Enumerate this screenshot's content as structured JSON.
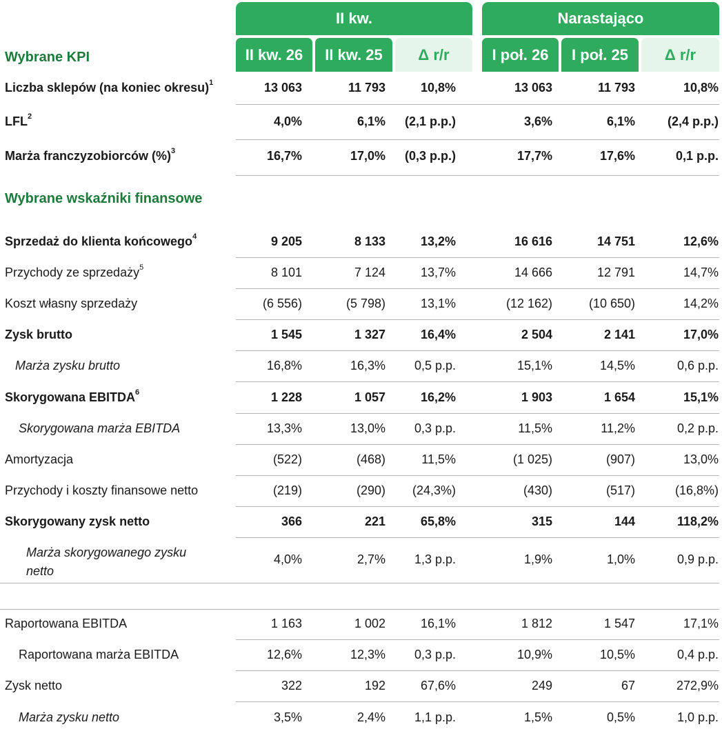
{
  "header": {
    "group_q": "II kw.",
    "group_cum": "Narastająco",
    "kpi_title": "Wybrane KPI",
    "columns": [
      "II kw. 26",
      "II kw. 25",
      "Δ r/r",
      "I poł. 26",
      "I poł. 25",
      "Δ r/r"
    ]
  },
  "finance_title": "Wybrane wskaźniki finansowe",
  "kpi_rows": [
    {
      "label": "Liczba sklepów (na koniec okresu)",
      "sup": "1",
      "values": [
        "13 063",
        "11 793",
        "10,8%",
        "13 063",
        "11 793",
        "10,8%"
      ]
    },
    {
      "label": "LFL",
      "sup": "2",
      "values": [
        "4,0%",
        "6,1%",
        "(2,1 p.p.)",
        "3,6%",
        "6,1%",
        "(2,4 p.p.)"
      ]
    },
    {
      "label": "Marża franczyzobiorców (%)",
      "sup": "3",
      "values": [
        "16,7%",
        "17,0%",
        "(0,3 p.p.)",
        "17,7%",
        "17,6%",
        "0,1 p.p."
      ]
    }
  ],
  "fin_rows": [
    {
      "label": "Sprzedaż do klienta końcowego",
      "sup": "4",
      "values": [
        "9 205",
        "8 133",
        "13,2%",
        "16 616",
        "14 751",
        "12,6%"
      ]
    },
    {
      "label": "Przychody ze sprzedaży",
      "sup": "5",
      "values": [
        "8 101",
        "7 124",
        "13,7%",
        "14 666",
        "12 791",
        "14,7%"
      ]
    },
    {
      "label": "Koszt własny sprzedaży",
      "sup": "",
      "values": [
        "(6 556)",
        "(5 798)",
        "13,1%",
        "(12 162)",
        "(10 650)",
        "14,2%"
      ]
    },
    {
      "label": "Zysk brutto",
      "sup": "",
      "values": [
        "1 545",
        "1 327",
        "16,4%",
        "2 504",
        "2 141",
        "17,0%"
      ]
    },
    {
      "label": "Marża zysku brutto",
      "sup": "",
      "values": [
        "16,8%",
        "16,3%",
        "0,5 p.p.",
        "15,1%",
        "14,5%",
        "0,6 p.p."
      ]
    },
    {
      "label": "Skorygowana EBITDA",
      "sup": "6",
      "values": [
        "1 228",
        "1 057",
        "16,2%",
        "1 903",
        "1 654",
        "15,1%"
      ]
    },
    {
      "label": "Skorygowana marża EBITDA",
      "sup": "",
      "values": [
        "13,3%",
        "13,0%",
        "0,3 p.p.",
        "11,5%",
        "11,2%",
        "0,2 p.p."
      ]
    },
    {
      "label": "Amortyzacja",
      "sup": "",
      "values": [
        "(522)",
        "(468)",
        "11,5%",
        "(1 025)",
        "(907)",
        "13,0%"
      ]
    },
    {
      "label": "Przychody i koszty finansowe netto",
      "sup": "",
      "values": [
        "(219)",
        "(290)",
        "(24,3%)",
        "(430)",
        "(517)",
        "(16,8%)"
      ]
    },
    {
      "label": "Skorygowany zysk netto",
      "sup": "",
      "values": [
        "366",
        "221",
        "65,8%",
        "315",
        "144",
        "118,2%"
      ]
    },
    {
      "label": [
        "Marża skorygowanego zysku",
        "netto"
      ],
      "sup": "",
      "values": [
        "4,0%",
        "2,7%",
        "1,3 p.p.",
        "1,9%",
        "1,0%",
        "0,9 p.p."
      ]
    }
  ],
  "reported_rows": [
    {
      "label": "Raportowana EBITDA",
      "sup": "",
      "values": [
        "1 163",
        "1 002",
        "16,1%",
        "1 812",
        "1 547",
        "17,1%"
      ]
    },
    {
      "label": "Raportowana marża EBITDA",
      "sup": "",
      "values": [
        "12,6%",
        "12,3%",
        "0,3 p.p.",
        "10,9%",
        "10,5%",
        "0,4 p.p."
      ]
    },
    {
      "label": "Zysk netto",
      "sup": "",
      "values": [
        "322",
        "192",
        "67,6%",
        "249",
        "67",
        "272,9%"
      ]
    },
    {
      "label": "Marża zysku netto",
      "sup": "",
      "values": [
        "3,5%",
        "2,4%",
        "1,1 p.p.",
        "1,5%",
        "0,5%",
        "1,0 p.p."
      ]
    }
  ],
  "colors": {
    "green": "#2eab5c",
    "light_green": "#e6f5ea",
    "title_green": "#1d7a3a"
  }
}
